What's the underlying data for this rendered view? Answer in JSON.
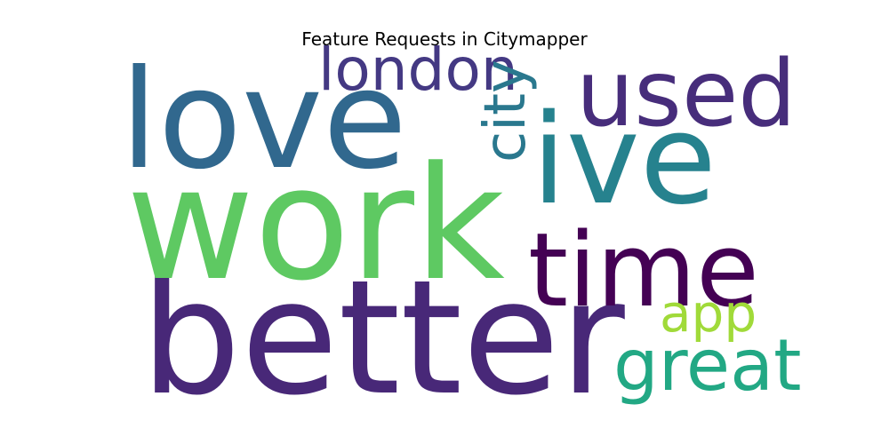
{
  "chart_data": {
    "type": "wordcloud",
    "title": "Feature Requests in Citymapper",
    "colormap": "viridis",
    "background": "#ffffff",
    "words": [
      {
        "text": "better",
        "weight": 1.0,
        "color": "#482878",
        "orientation": "horizontal"
      },
      {
        "text": "work",
        "weight": 0.98,
        "color": "#5ec962",
        "orientation": "horizontal"
      },
      {
        "text": "love",
        "weight": 0.86,
        "color": "#31688e",
        "orientation": "horizontal"
      },
      {
        "text": "ive",
        "weight": 0.78,
        "color": "#26828e",
        "orientation": "horizontal"
      },
      {
        "text": "time",
        "weight": 0.64,
        "color": "#440154",
        "orientation": "horizontal"
      },
      {
        "text": "used",
        "weight": 0.57,
        "color": "#472d7b",
        "orientation": "horizontal"
      },
      {
        "text": "great",
        "weight": 0.45,
        "color": "#22a884",
        "orientation": "horizontal"
      },
      {
        "text": "london",
        "weight": 0.37,
        "color": "#443983",
        "orientation": "horizontal"
      },
      {
        "text": "city",
        "weight": 0.36,
        "color": "#2a788e",
        "orientation": "vertical"
      },
      {
        "text": "app",
        "weight": 0.32,
        "color": "#a0da39",
        "orientation": "horizontal"
      }
    ]
  }
}
